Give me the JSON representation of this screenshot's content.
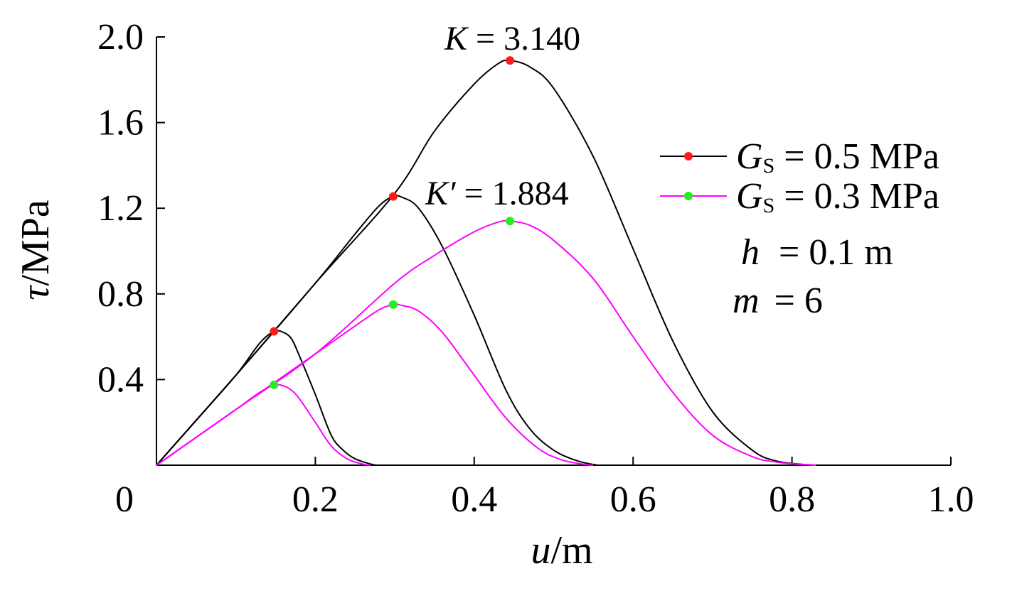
{
  "chart_data": {
    "type": "line",
    "xlabel": {
      "var": "u",
      "unit": "/m"
    },
    "ylabel": {
      "var": "τ",
      "unit": "/MPa"
    },
    "xlim": [
      0,
      1.0
    ],
    "ylim": [
      0,
      2.0
    ],
    "x_ticks": [
      0,
      0.2,
      0.4,
      0.6,
      0.8,
      1.0
    ],
    "x_tick_labels": [
      "0",
      "0.2",
      "0.4",
      "0.6",
      "0.8",
      "1.0"
    ],
    "y_ticks": [
      0.4,
      0.8,
      1.2,
      1.6,
      2.0
    ],
    "y_tick_labels": [
      "0.4",
      "0.8",
      "1.2",
      "1.6",
      "2.0"
    ],
    "grid": false,
    "legend_position": "right",
    "series": [
      {
        "group": "black",
        "color": "#000000",
        "marker_color": "#ff1a1a",
        "x": [
          0,
          0.05,
          0.1,
          0.13,
          0.148,
          0.16,
          0.17,
          0.18,
          0.2,
          0.22,
          0.235,
          0.25,
          0.27,
          0.277
        ],
        "y": [
          0,
          0.21,
          0.42,
          0.57,
          0.625,
          0.62,
          0.59,
          0.51,
          0.33,
          0.14,
          0.07,
          0.03,
          0.005,
          0
        ]
      },
      {
        "group": "black",
        "color": "#000000",
        "marker_color": "#ff1a1a",
        "x": [
          0,
          0.1,
          0.2,
          0.25,
          0.28,
          0.298,
          0.31,
          0.33,
          0.36,
          0.4,
          0.44,
          0.47,
          0.5,
          0.53,
          0.555
        ],
        "y": [
          0,
          0.42,
          0.85,
          1.08,
          1.21,
          1.255,
          1.25,
          1.2,
          1.02,
          0.7,
          0.35,
          0.17,
          0.07,
          0.02,
          0
        ]
      },
      {
        "group": "black",
        "color": "#000000",
        "marker_color": "#ff1a1a",
        "x": [
          0,
          0.1,
          0.2,
          0.3,
          0.35,
          0.4,
          0.43,
          0.445,
          0.47,
          0.5,
          0.55,
          0.6,
          0.65,
          0.7,
          0.75,
          0.78,
          0.81,
          0.83
        ],
        "y": [
          0,
          0.42,
          0.85,
          1.27,
          1.56,
          1.78,
          1.875,
          1.89,
          1.86,
          1.76,
          1.44,
          1.01,
          0.58,
          0.25,
          0.07,
          0.02,
          0.005,
          0
        ]
      },
      {
        "group": "magenta",
        "color": "#ff00ff",
        "marker_color": "#22ee22",
        "x": [
          0,
          0.05,
          0.1,
          0.13,
          0.148,
          0.16,
          0.17,
          0.18,
          0.2,
          0.22,
          0.24,
          0.26,
          0.27
        ],
        "y": [
          0,
          0.13,
          0.26,
          0.34,
          0.375,
          0.37,
          0.35,
          0.31,
          0.2,
          0.09,
          0.03,
          0.005,
          0
        ]
      },
      {
        "group": "magenta",
        "color": "#ff00ff",
        "marker_color": "#22ee22",
        "x": [
          0,
          0.1,
          0.2,
          0.25,
          0.28,
          0.298,
          0.31,
          0.33,
          0.36,
          0.4,
          0.44,
          0.48,
          0.51,
          0.54,
          0.55
        ],
        "y": [
          0,
          0.26,
          0.52,
          0.65,
          0.725,
          0.75,
          0.745,
          0.72,
          0.62,
          0.42,
          0.22,
          0.08,
          0.025,
          0.003,
          0
        ]
      },
      {
        "group": "magenta",
        "color": "#ff00ff",
        "marker_color": "#22ee22",
        "x": [
          0,
          0.1,
          0.2,
          0.3,
          0.35,
          0.4,
          0.43,
          0.445,
          0.47,
          0.5,
          0.55,
          0.6,
          0.65,
          0.7,
          0.75,
          0.78,
          0.81,
          0.83
        ],
        "y": [
          0,
          0.26,
          0.52,
          0.85,
          0.98,
          1.09,
          1.135,
          1.14,
          1.12,
          1.05,
          0.87,
          0.6,
          0.34,
          0.14,
          0.04,
          0.015,
          0.004,
          0
        ]
      }
    ],
    "peak_markers": [
      {
        "x": 0.148,
        "y": 0.625,
        "color": "#ff1a1a"
      },
      {
        "x": 0.298,
        "y": 1.255,
        "color": "#ff1a1a"
      },
      {
        "x": 0.445,
        "y": 1.89,
        "color": "#ff1a1a"
      },
      {
        "x": 0.148,
        "y": 0.375,
        "color": "#22ee22"
      },
      {
        "x": 0.298,
        "y": 0.75,
        "color": "#22ee22"
      },
      {
        "x": 0.445,
        "y": 1.14,
        "color": "#22ee22"
      }
    ],
    "annotations": [
      {
        "var": "K",
        "text": " = 3.140"
      },
      {
        "var": "K′",
        "text": " = 1.884"
      }
    ],
    "legend": [
      {
        "var": "G",
        "sub": "S",
        "text": " = 0.5 MPa",
        "line_color": "#000000",
        "marker_color": "#ff1a1a"
      },
      {
        "var": "G",
        "sub": "S",
        "text": " = 0.3 MPa",
        "line_color": "#ff00ff",
        "marker_color": "#22ee22"
      }
    ],
    "parameters": [
      {
        "var": "h",
        "text": " = 0.1 m"
      },
      {
        "var": "m",
        "text": " = 6"
      }
    ]
  }
}
